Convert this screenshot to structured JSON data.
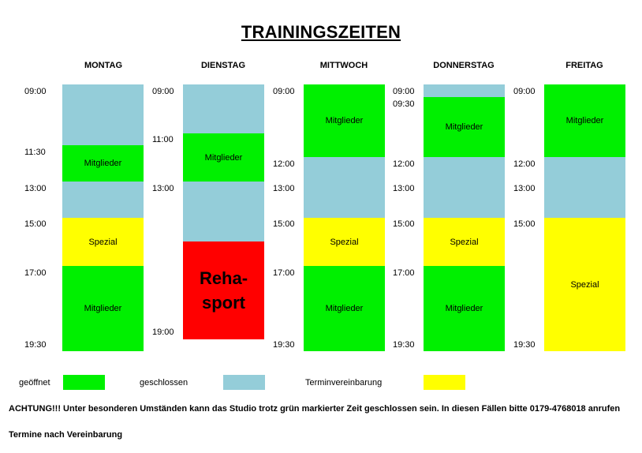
{
  "title": "TRAININGSZEITEN",
  "days": [
    "MONTAG",
    "DIENSTAG",
    "MITTWOCH",
    "DONNERSTAG",
    "FREITAG"
  ],
  "times": {
    "montag": [
      "09:00",
      "11:30",
      "13:00",
      "15:00",
      "17:00",
      "19:30"
    ],
    "dienstag": [
      "09:00",
      "11:00",
      "13:00",
      "19:00"
    ],
    "mittwoch": [
      "09:00",
      "12:00",
      "13:00",
      "15:00",
      "17:00",
      "19:30"
    ],
    "donnerstag": [
      "09:00",
      "09:30",
      "12:00",
      "13:00",
      "15:00",
      "17:00",
      "19:30"
    ],
    "freitag": [
      "09:00",
      "12:00",
      "13:00",
      "15:00",
      "19:30"
    ]
  },
  "blocks": {
    "mitglieder": "Mitglieder",
    "spezial": "Spezial",
    "reha_line1": "Reha-",
    "reha_line2": "sport"
  },
  "legend": {
    "open": "geöffnet",
    "closed": "geschlossen",
    "appointment": "Terminvereinbarung"
  },
  "colors": {
    "open": "#00f000",
    "closed": "#94cdd9",
    "appointment": "#ffff00",
    "reha": "#ff0000"
  },
  "notes": {
    "warning": "ACHTUNG!!!  Unter besonderen Umständen kann das Studio trotz grün markierter Zeit geschlossen sein. In diesen Fällen bitte 0179-4768018 anrufen",
    "appointments": "Termine nach Vereinbarung"
  }
}
